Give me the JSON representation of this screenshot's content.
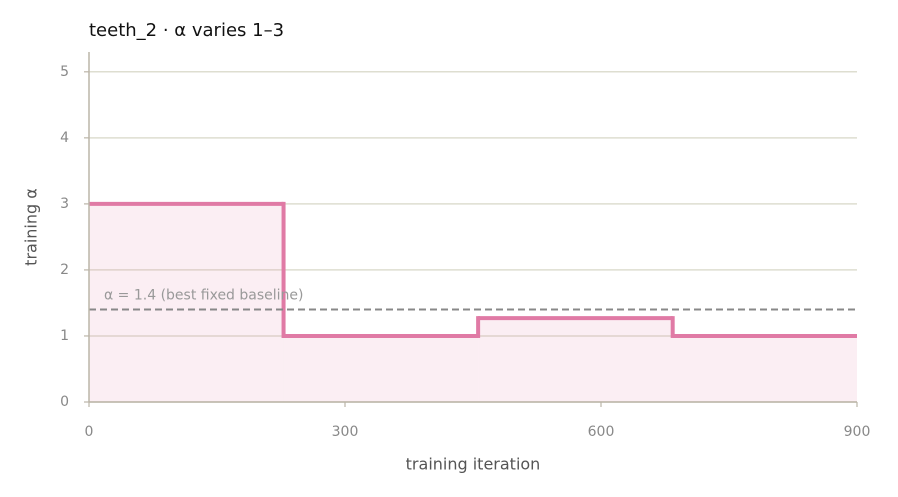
{
  "chart_data": {
    "type": "step",
    "title": "teeth_2   ·   α varies 1–3",
    "x_label": "training iteration",
    "y_label": "training α",
    "x": [
      0,
      228,
      456,
      684
    ],
    "series": [
      {
        "name": "training α",
        "color": "#e07aa5",
        "values": [
          3,
          1,
          1.27,
          1
        ]
      }
    ],
    "baseline": {
      "value": 1.4,
      "label": "α = 1.4 (best fixed baseline)",
      "color": "#888888"
    },
    "xlim": [
      0,
      900
    ],
    "xticks": [
      0,
      300,
      600,
      900
    ],
    "ylim": [
      0,
      5.3
    ],
    "yticks": [
      0,
      1,
      2,
      3,
      4,
      5
    ],
    "grid": true
  }
}
